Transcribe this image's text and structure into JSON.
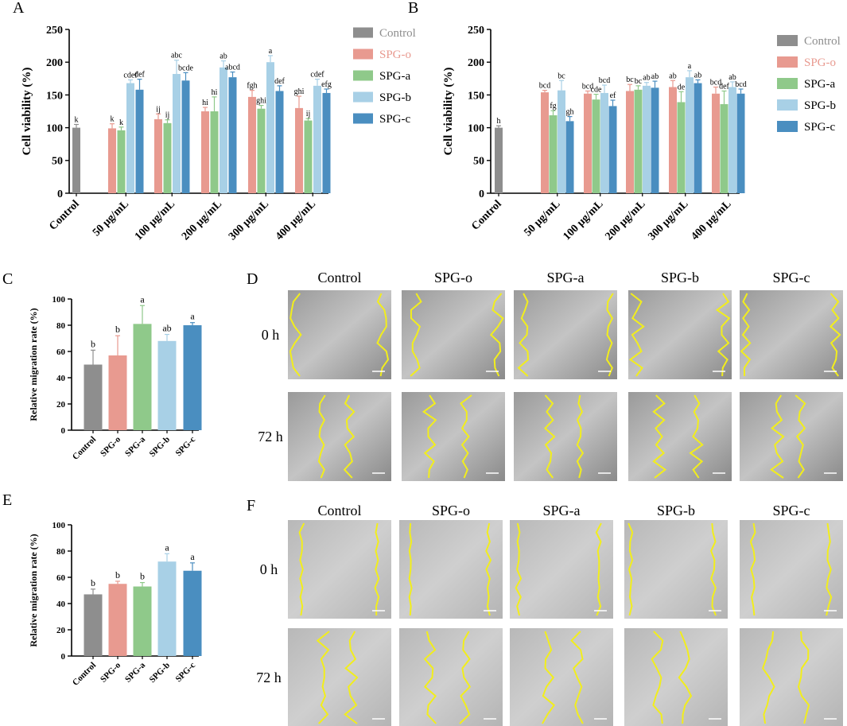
{
  "colors": {
    "Control": "#8e8e8e",
    "SPG-o": "#e89a90",
    "SPG-a": "#8fc98a",
    "SPG-b": "#a8d0e6",
    "SPG-c": "#4a8ec0",
    "scratch_line": "#f2ee1c"
  },
  "chart_data": [
    {
      "id": "A",
      "type": "bar",
      "panel_label": "A",
      "ylabel": "Cell viability (%)",
      "ylim": [
        0,
        250
      ],
      "yticks": [
        "0",
        "50",
        "100",
        "150",
        "200",
        "250"
      ],
      "categories": [
        "Control",
        "50 μg/mL",
        "100 μg/mL",
        "200 μg/mL",
        "300 μg/mL",
        "400 μg/mL"
      ],
      "legend": [
        "Control",
        "SPG-o",
        "SPG-a",
        "SPG-b",
        "SPG-c"
      ],
      "legend_position": "right",
      "series": [
        {
          "name": "Control",
          "values": [
            100,
            null,
            null,
            null,
            null,
            null
          ],
          "errors": [
            5,
            null,
            null,
            null,
            null,
            null
          ],
          "labels": [
            "k",
            "",
            "",
            "",
            "",
            ""
          ]
        },
        {
          "name": "SPG-o",
          "values": [
            null,
            99,
            113,
            125,
            147,
            130
          ],
          "errors": [
            null,
            7,
            8,
            6,
            10,
            18
          ],
          "labels": [
            "",
            "k",
            "ij",
            "hi",
            "fgh",
            "ghi"
          ]
        },
        {
          "name": "SPG-a",
          "values": [
            null,
            96,
            107,
            125,
            129,
            111
          ],
          "errors": [
            null,
            5,
            5,
            22,
            5,
            3
          ],
          "labels": [
            "",
            "k",
            "ij",
            "hi",
            "ghi",
            "ij"
          ]
        },
        {
          "name": "SPG-b",
          "values": [
            null,
            168,
            182,
            192,
            200,
            164
          ],
          "errors": [
            null,
            5,
            21,
            10,
            10,
            10
          ],
          "labels": [
            "",
            "cdef",
            "abc",
            "ab",
            "a",
            "cdef"
          ]
        },
        {
          "name": "SPG-c",
          "values": [
            null,
            158,
            172,
            177,
            156,
            153
          ],
          "errors": [
            null,
            16,
            12,
            8,
            8,
            6
          ],
          "labels": [
            "",
            "def",
            "bcde",
            "abcd",
            "def",
            "efg"
          ]
        }
      ]
    },
    {
      "id": "B",
      "type": "bar",
      "panel_label": "B",
      "ylabel": "Cell viability (%)",
      "ylim": [
        0,
        250
      ],
      "yticks": [
        "0",
        "50",
        "100",
        "150",
        "200",
        "250"
      ],
      "categories": [
        "Control",
        "50 μg/mL",
        "100 μg/mL",
        "200 μg/mL",
        "300 μg/mL",
        "400 μg/mL"
      ],
      "legend": [
        "Control",
        "SPG-o",
        "SPG-a",
        "SPG-b",
        "SPG-c"
      ],
      "legend_position": "right",
      "series": [
        {
          "name": "Control",
          "values": [
            100,
            null,
            null,
            null,
            null,
            null
          ],
          "errors": [
            3,
            null,
            null,
            null,
            null,
            null
          ],
          "labels": [
            "h",
            "",
            "",
            "",
            "",
            ""
          ]
        },
        {
          "name": "SPG-o",
          "values": [
            null,
            154,
            152,
            156,
            162,
            152
          ],
          "errors": [
            null,
            3,
            4,
            10,
            10,
            10
          ],
          "labels": [
            "",
            "bcd",
            "bcd",
            "bc",
            "ab",
            "bcd"
          ]
        },
        {
          "name": "SPG-a",
          "values": [
            null,
            119,
            143,
            158,
            139,
            136
          ],
          "errors": [
            null,
            7,
            8,
            6,
            16,
            20
          ],
          "labels": [
            "",
            "fg",
            "cde",
            "bc",
            "de",
            "def"
          ]
        },
        {
          "name": "SPG-b",
          "values": [
            null,
            157,
            153,
            164,
            177,
            162
          ],
          "errors": [
            null,
            15,
            12,
            5,
            10,
            8
          ],
          "labels": [
            "",
            "bc",
            "bcd",
            "ab",
            "a",
            "ab"
          ]
        },
        {
          "name": "SPG-c",
          "values": [
            null,
            110,
            133,
            161,
            168,
            152
          ],
          "errors": [
            null,
            7,
            9,
            10,
            5,
            7
          ],
          "labels": [
            "",
            "gh",
            "ef",
            "ab",
            "ab",
            "bcd"
          ]
        }
      ]
    },
    {
      "id": "C",
      "type": "bar",
      "panel_label": "C",
      "ylabel": "Relative migration rate (%)",
      "ylim": [
        0,
        100
      ],
      "yticks": [
        "0",
        "20",
        "40",
        "60",
        "80",
        "100"
      ],
      "categories": [
        "Control",
        "SPG-o",
        "SPG-a",
        "SPG-b",
        "SPG-c"
      ],
      "values": [
        50,
        57,
        81,
        68,
        80
      ],
      "errors": [
        11,
        15,
        14,
        5,
        2
      ],
      "labels": [
        "b",
        "b",
        "a",
        "ab",
        "a"
      ]
    },
    {
      "id": "E",
      "type": "bar",
      "panel_label": "E",
      "ylabel": "Relative migration rate (%)",
      "ylim": [
        0,
        100
      ],
      "yticks": [
        "0",
        "20",
        "40",
        "60",
        "80",
        "100"
      ],
      "categories": [
        "Control",
        "SPG-o",
        "SPG-a",
        "SPG-b",
        "SPG-c"
      ],
      "values": [
        47,
        55,
        53,
        72,
        65
      ],
      "errors": [
        4,
        2,
        3,
        6,
        6
      ],
      "labels": [
        "b",
        "b",
        "b",
        "a",
        "a"
      ]
    }
  ],
  "image_panels": [
    {
      "id": "D",
      "panel_label": "D",
      "columns": [
        "Control",
        "SPG-o",
        "SPG-a",
        "SPG-b",
        "SPG-c"
      ],
      "rows": [
        "0 h",
        "72 h"
      ]
    },
    {
      "id": "F",
      "panel_label": "F",
      "columns": [
        "Control",
        "SPG-o",
        "SPG-a",
        "SPG-b",
        "SPG-c"
      ],
      "rows": [
        "0 h",
        "72 h"
      ]
    }
  ]
}
